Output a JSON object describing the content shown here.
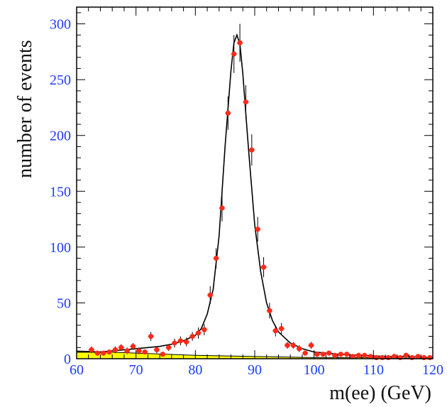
{
  "chart_data": {
    "type": "scatter",
    "title": "",
    "xlabel": "m(ee) (GeV)",
    "ylabel": "number of events",
    "xlim": [
      60,
      120
    ],
    "ylim": [
      0,
      315
    ],
    "xticks": [
      60,
      70,
      80,
      90,
      100,
      110,
      120
    ],
    "yticks": [
      0,
      50,
      100,
      150,
      200,
      250,
      300
    ],
    "grid": false,
    "colors": {
      "data_points": "#ff2a1a",
      "fit_curve": "#000000",
      "background_fill": "#ffff00",
      "tick_labels": "#1a3cff",
      "frame": "#000000"
    },
    "series": [
      {
        "values_kind": "data points with error bars",
        "x": [
          62.5,
          63.5,
          64.5,
          65.5,
          66.5,
          67.5,
          68.5,
          69.5,
          70.5,
          71.5,
          72.5,
          73.5,
          74.5,
          75.5,
          76.5,
          77.5,
          78.5,
          79.5,
          80.5,
          81.5,
          82.5,
          83.5,
          84.5,
          85.5,
          86.5,
          87.5,
          88.5,
          89.5,
          90.5,
          91.5,
          92.5,
          93.5,
          94.5,
          95.5,
          96.5,
          97.5,
          98.5,
          99.5,
          100.5,
          101.5,
          102.5,
          103.5,
          104.5,
          105.5,
          106.5,
          107.5,
          108.5,
          109.5,
          110.5,
          111.5,
          112.5,
          113.5,
          114.5,
          115.5,
          116.5,
          117.5,
          118.5,
          119.5
        ],
        "y": [
          8,
          5,
          5,
          6,
          8,
          10,
          7,
          11,
          7,
          6,
          20,
          8,
          4,
          10,
          14,
          16,
          15,
          20,
          23,
          26,
          57,
          90,
          135,
          220,
          273,
          283,
          230,
          187,
          116,
          82,
          43,
          25,
          27,
          12,
          12,
          9,
          5,
          12,
          4,
          4,
          5,
          3,
          4,
          4,
          2,
          3,
          3,
          2,
          1,
          1,
          1,
          2,
          1,
          3,
          1,
          2,
          1,
          1
        ],
        "errors": [
          3,
          2,
          2,
          2,
          3,
          3,
          3,
          3,
          3,
          2,
          4,
          3,
          2,
          3,
          4,
          4,
          4,
          4,
          5,
          5,
          8,
          9,
          12,
          15,
          17,
          17,
          15,
          14,
          11,
          9,
          7,
          5,
          5,
          3,
          3,
          3,
          2,
          3,
          2,
          2,
          2,
          2,
          2,
          2,
          1,
          2,
          2,
          1,
          1,
          1,
          1,
          1,
          1,
          2,
          1,
          1,
          1,
          1
        ]
      },
      {
        "values_kind": "fit curve",
        "x": [
          60,
          62,
          64,
          66,
          68,
          70,
          72,
          74,
          76,
          78,
          80,
          81,
          82,
          83,
          84,
          85,
          86,
          86.5,
          87,
          87.5,
          88,
          88.5,
          89,
          90,
          91,
          92,
          93,
          94,
          96,
          98,
          100,
          104,
          108,
          112,
          116,
          120
        ],
        "y": [
          6,
          6,
          6,
          7,
          8,
          9,
          10,
          11,
          13,
          16,
          21,
          27,
          40,
          62,
          110,
          190,
          258,
          283,
          290,
          282,
          255,
          220,
          185,
          120,
          78,
          50,
          34,
          24,
          14,
          9,
          6,
          4,
          3,
          2,
          2,
          1
        ]
      },
      {
        "values_kind": "background",
        "x": [
          60,
          70,
          80,
          90,
          100,
          110,
          120
        ],
        "y": [
          7,
          5,
          3,
          2,
          1,
          1,
          0
        ]
      }
    ]
  }
}
